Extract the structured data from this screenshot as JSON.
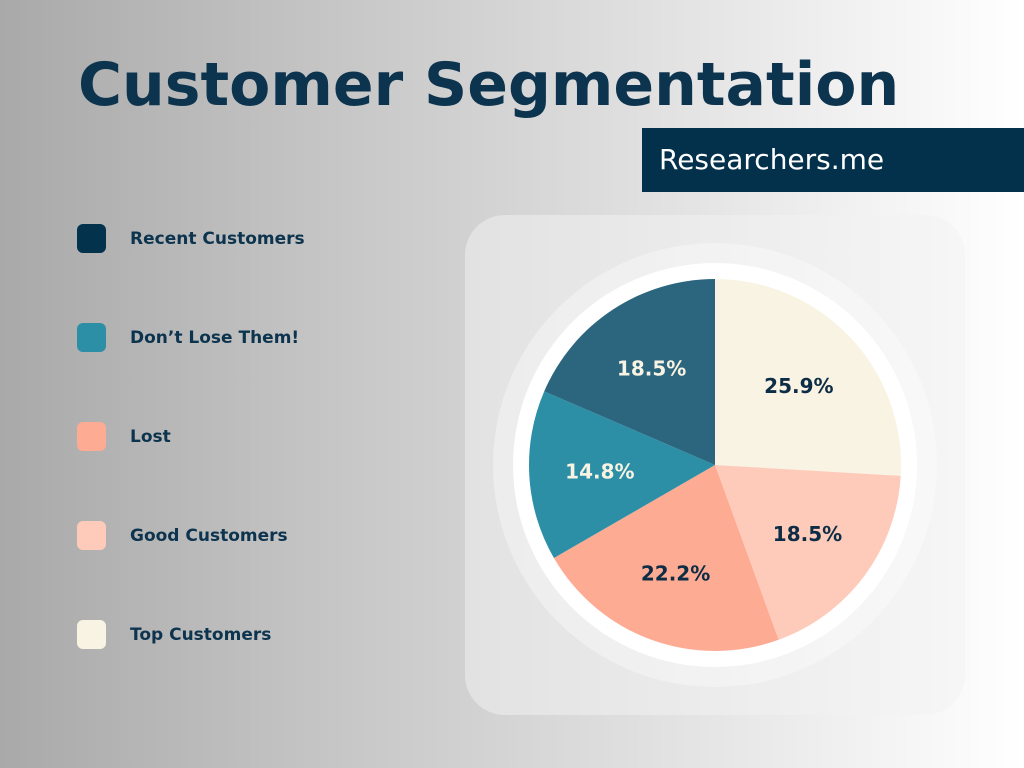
{
  "chart_data": {
    "type": "pie",
    "title": "Customer Segmentation",
    "series": [
      {
        "name": "Top Customers",
        "value": 25.9,
        "label": "25.9%",
        "color": "#f9f3e3",
        "legend_color": "#f9f3e3",
        "label_color": "#0d2c45"
      },
      {
        "name": "Good Customers",
        "value": 18.5,
        "label": "18.5%",
        "color": "#fecbba",
        "legend_color": "#fecbba",
        "label_color": "#0d2c45"
      },
      {
        "name": "Lost",
        "value": 22.2,
        "label": "22.2%",
        "color": "#fdab92",
        "legend_color": "#fdab92",
        "label_color": "#0d2c45"
      },
      {
        "name": "Don’t Lose Them!",
        "value": 14.8,
        "label": "14.8%",
        "color": "#2c8fa6",
        "legend_color": "#2c8fa6",
        "label_color": "#f9f3e3"
      },
      {
        "name": "Recent Customers",
        "value": 18.5,
        "label": "18.5%",
        "color": "#2b657e",
        "legend_color": "#03324d",
        "label_color": "#f9f3e3"
      }
    ],
    "legend_order": [
      "Recent Customers",
      "Don’t Lose Them!",
      "Lost",
      "Good Customers",
      "Top Customers"
    ],
    "legend_placement": "left",
    "start": "top",
    "direction": "clockwise"
  },
  "brand": "Researchers.me"
}
